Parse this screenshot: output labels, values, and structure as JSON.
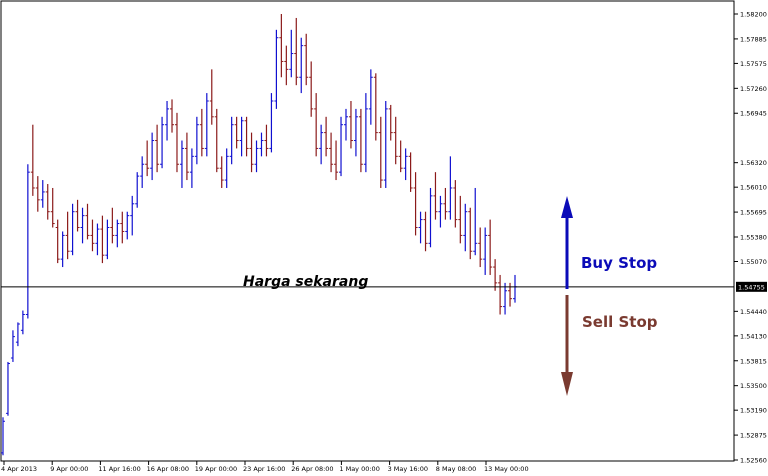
{
  "chart_data": {
    "type": "ohlc",
    "grid": false,
    "y_ticks": [
      "1.58200",
      "1.57885",
      "1.57575",
      "1.57260",
      "1.56945",
      "1.56320",
      "1.56010",
      "1.55695",
      "1.55380",
      "1.55070",
      "1.54440",
      "1.54130",
      "1.53815",
      "1.53500",
      "1.53190",
      "1.52875",
      "1.52560"
    ],
    "x_ticks": [
      "4 Apr 2013",
      "9 Apr 00:00",
      "11 Apr 16:00",
      "16 Apr 08:00",
      "19 Apr 00:00",
      "23 Apr 16:00",
      "26 Apr 08:00",
      "1 May 00:00",
      "3 May 16:00",
      "8 May 08:00",
      "13 May 00:00"
    ],
    "current_price_label": "1.54755",
    "current_price": 1.5475,
    "ylim": [
      1.5256,
      1.5826
    ],
    "bars": [
      {
        "o": 1.5265,
        "h": 1.531,
        "l": 1.5262,
        "c": 1.5305
      },
      {
        "o": 1.5315,
        "h": 1.538,
        "l": 1.5312,
        "c": 1.5378
      },
      {
        "o": 1.5385,
        "h": 1.542,
        "l": 1.538,
        "c": 1.5412
      },
      {
        "o": 1.5405,
        "h": 1.543,
        "l": 1.54,
        "c": 1.5428
      },
      {
        "o": 1.542,
        "h": 1.5445,
        "l": 1.5415,
        "c": 1.544
      },
      {
        "o": 1.544,
        "h": 1.563,
        "l": 1.5435,
        "c": 1.562
      },
      {
        "o": 1.562,
        "h": 1.568,
        "l": 1.559,
        "c": 1.56
      },
      {
        "o": 1.56,
        "h": 1.5615,
        "l": 1.557,
        "c": 1.5585
      },
      {
        "o": 1.5585,
        "h": 1.561,
        "l": 1.5575,
        "c": 1.5595
      },
      {
        "o": 1.5595,
        "h": 1.5605,
        "l": 1.556,
        "c": 1.557
      },
      {
        "o": 1.557,
        "h": 1.56,
        "l": 1.555,
        "c": 1.5555
      },
      {
        "o": 1.555,
        "h": 1.556,
        "l": 1.5505,
        "c": 1.551
      },
      {
        "o": 1.551,
        "h": 1.5545,
        "l": 1.55,
        "c": 1.554
      },
      {
        "o": 1.554,
        "h": 1.557,
        "l": 1.551,
        "c": 1.552
      },
      {
        "o": 1.552,
        "h": 1.558,
        "l": 1.5515,
        "c": 1.557
      },
      {
        "o": 1.557,
        "h": 1.5585,
        "l": 1.5545,
        "c": 1.555
      },
      {
        "o": 1.555,
        "h": 1.5575,
        "l": 1.553,
        "c": 1.5565
      },
      {
        "o": 1.5565,
        "h": 1.558,
        "l": 1.5535,
        "c": 1.554
      },
      {
        "o": 1.554,
        "h": 1.556,
        "l": 1.552,
        "c": 1.553
      },
      {
        "o": 1.553,
        "h": 1.5555,
        "l": 1.5515,
        "c": 1.5548
      },
      {
        "o": 1.5548,
        "h": 1.5565,
        "l": 1.5505,
        "c": 1.5515
      },
      {
        "o": 1.5515,
        "h": 1.556,
        "l": 1.551,
        "c": 1.555
      },
      {
        "o": 1.555,
        "h": 1.5575,
        "l": 1.553,
        "c": 1.554
      },
      {
        "o": 1.554,
        "h": 1.556,
        "l": 1.5525,
        "c": 1.5555
      },
      {
        "o": 1.5555,
        "h": 1.557,
        "l": 1.553,
        "c": 1.5545
      },
      {
        "o": 1.5545,
        "h": 1.557,
        "l": 1.5535,
        "c": 1.5565
      },
      {
        "o": 1.5565,
        "h": 1.559,
        "l": 1.554,
        "c": 1.558
      },
      {
        "o": 1.558,
        "h": 1.562,
        "l": 1.5575,
        "c": 1.5615
      },
      {
        "o": 1.5615,
        "h": 1.564,
        "l": 1.56,
        "c": 1.563
      },
      {
        "o": 1.563,
        "h": 1.566,
        "l": 1.5615,
        "c": 1.5625
      },
      {
        "o": 1.5625,
        "h": 1.567,
        "l": 1.561,
        "c": 1.566
      },
      {
        "o": 1.566,
        "h": 1.568,
        "l": 1.562,
        "c": 1.563
      },
      {
        "o": 1.563,
        "h": 1.569,
        "l": 1.5625,
        "c": 1.568
      },
      {
        "o": 1.568,
        "h": 1.571,
        "l": 1.566,
        "c": 1.57
      },
      {
        "o": 1.57,
        "h": 1.5712,
        "l": 1.567,
        "c": 1.568
      },
      {
        "o": 1.568,
        "h": 1.5695,
        "l": 1.562,
        "c": 1.563
      },
      {
        "o": 1.563,
        "h": 1.566,
        "l": 1.56,
        "c": 1.565
      },
      {
        "o": 1.565,
        "h": 1.567,
        "l": 1.561,
        "c": 1.562
      },
      {
        "o": 1.562,
        "h": 1.565,
        "l": 1.56,
        "c": 1.564
      },
      {
        "o": 1.564,
        "h": 1.569,
        "l": 1.563,
        "c": 1.568
      },
      {
        "o": 1.568,
        "h": 1.57,
        "l": 1.564,
        "c": 1.565
      },
      {
        "o": 1.565,
        "h": 1.572,
        "l": 1.564,
        "c": 1.571
      },
      {
        "o": 1.571,
        "h": 1.575,
        "l": 1.568,
        "c": 1.569
      },
      {
        "o": 1.569,
        "h": 1.57,
        "l": 1.562,
        "c": 1.5625
      },
      {
        "o": 1.5625,
        "h": 1.564,
        "l": 1.56,
        "c": 1.561
      },
      {
        "o": 1.561,
        "h": 1.565,
        "l": 1.56,
        "c": 1.564
      },
      {
        "o": 1.564,
        "h": 1.569,
        "l": 1.563,
        "c": 1.568
      },
      {
        "o": 1.568,
        "h": 1.569,
        "l": 1.565,
        "c": 1.566
      },
      {
        "o": 1.566,
        "h": 1.569,
        "l": 1.564,
        "c": 1.5685
      },
      {
        "o": 1.5685,
        "h": 1.569,
        "l": 1.564,
        "c": 1.565
      },
      {
        "o": 1.565,
        "h": 1.567,
        "l": 1.562,
        "c": 1.563
      },
      {
        "o": 1.563,
        "h": 1.566,
        "l": 1.562,
        "c": 1.565
      },
      {
        "o": 1.565,
        "h": 1.567,
        "l": 1.564,
        "c": 1.566
      },
      {
        "o": 1.566,
        "h": 1.568,
        "l": 1.564,
        "c": 1.565
      },
      {
        "o": 1.565,
        "h": 1.572,
        "l": 1.5645,
        "c": 1.571
      },
      {
        "o": 1.571,
        "h": 1.58,
        "l": 1.57,
        "c": 1.579
      },
      {
        "o": 1.579,
        "h": 1.582,
        "l": 1.574,
        "c": 1.576
      },
      {
        "o": 1.576,
        "h": 1.578,
        "l": 1.573,
        "c": 1.575
      },
      {
        "o": 1.575,
        "h": 1.58,
        "l": 1.574,
        "c": 1.577
      },
      {
        "o": 1.577,
        "h": 1.5815,
        "l": 1.573,
        "c": 1.574
      },
      {
        "o": 1.574,
        "h": 1.579,
        "l": 1.572,
        "c": 1.578
      },
      {
        "o": 1.578,
        "h": 1.5795,
        "l": 1.573,
        "c": 1.574
      },
      {
        "o": 1.574,
        "h": 1.576,
        "l": 1.569,
        "c": 1.57
      },
      {
        "o": 1.57,
        "h": 1.572,
        "l": 1.564,
        "c": 1.565
      },
      {
        "o": 1.565,
        "h": 1.568,
        "l": 1.563,
        "c": 1.567
      },
      {
        "o": 1.567,
        "h": 1.569,
        "l": 1.564,
        "c": 1.565
      },
      {
        "o": 1.565,
        "h": 1.567,
        "l": 1.562,
        "c": 1.563
      },
      {
        "o": 1.563,
        "h": 1.566,
        "l": 1.561,
        "c": 1.562
      },
      {
        "o": 1.562,
        "h": 1.569,
        "l": 1.5615,
        "c": 1.568
      },
      {
        "o": 1.568,
        "h": 1.57,
        "l": 1.566,
        "c": 1.569
      },
      {
        "o": 1.569,
        "h": 1.571,
        "l": 1.565,
        "c": 1.566
      },
      {
        "o": 1.566,
        "h": 1.57,
        "l": 1.564,
        "c": 1.569
      },
      {
        "o": 1.569,
        "h": 1.57,
        "l": 1.562,
        "c": 1.563
      },
      {
        "o": 1.563,
        "h": 1.572,
        "l": 1.562,
        "c": 1.57
      },
      {
        "o": 1.57,
        "h": 1.575,
        "l": 1.568,
        "c": 1.574
      },
      {
        "o": 1.574,
        "h": 1.5745,
        "l": 1.566,
        "c": 1.567
      },
      {
        "o": 1.567,
        "h": 1.569,
        "l": 1.56,
        "c": 1.561
      },
      {
        "o": 1.561,
        "h": 1.571,
        "l": 1.56,
        "c": 1.57
      },
      {
        "o": 1.57,
        "h": 1.5705,
        "l": 1.566,
        "c": 1.567
      },
      {
        "o": 1.567,
        "h": 1.569,
        "l": 1.563,
        "c": 1.564
      },
      {
        "o": 1.564,
        "h": 1.566,
        "l": 1.562,
        "c": 1.5625
      },
      {
        "o": 1.5625,
        "h": 1.565,
        "l": 1.561,
        "c": 1.564
      },
      {
        "o": 1.564,
        "h": 1.5645,
        "l": 1.5595,
        "c": 1.56
      },
      {
        "o": 1.56,
        "h": 1.562,
        "l": 1.554,
        "c": 1.555
      },
      {
        "o": 1.555,
        "h": 1.557,
        "l": 1.553,
        "c": 1.556
      },
      {
        "o": 1.556,
        "h": 1.557,
        "l": 1.552,
        "c": 1.553
      },
      {
        "o": 1.553,
        "h": 1.56,
        "l": 1.5525,
        "c": 1.559
      },
      {
        "o": 1.559,
        "h": 1.562,
        "l": 1.556,
        "c": 1.557
      },
      {
        "o": 1.557,
        "h": 1.559,
        "l": 1.555,
        "c": 1.558
      },
      {
        "o": 1.558,
        "h": 1.56,
        "l": 1.556,
        "c": 1.557
      },
      {
        "o": 1.557,
        "h": 1.564,
        "l": 1.556,
        "c": 1.56
      },
      {
        "o": 1.56,
        "h": 1.561,
        "l": 1.555,
        "c": 1.556
      },
      {
        "o": 1.556,
        "h": 1.559,
        "l": 1.553,
        "c": 1.554
      },
      {
        "o": 1.554,
        "h": 1.558,
        "l": 1.552,
        "c": 1.557
      },
      {
        "o": 1.557,
        "h": 1.5575,
        "l": 1.551,
        "c": 1.552
      },
      {
        "o": 1.552,
        "h": 1.56,
        "l": 1.5515,
        "c": 1.553
      },
      {
        "o": 1.553,
        "h": 1.555,
        "l": 1.55,
        "c": 1.551
      },
      {
        "o": 1.551,
        "h": 1.555,
        "l": 1.549,
        "c": 1.554
      },
      {
        "o": 1.554,
        "h": 1.556,
        "l": 1.549,
        "c": 1.55
      },
      {
        "o": 1.55,
        "h": 1.551,
        "l": 1.547,
        "c": 1.548
      },
      {
        "o": 1.548,
        "h": 1.549,
        "l": 1.544,
        "c": 1.545
      },
      {
        "o": 1.545,
        "h": 1.548,
        "l": 1.544,
        "c": 1.547
      },
      {
        "o": 1.547,
        "h": 1.548,
        "l": 1.545,
        "c": 1.546
      },
      {
        "o": 1.546,
        "h": 1.549,
        "l": 1.5455,
        "c": 1.5475
      }
    ],
    "annotations": {
      "current_price_text": "Harga sekarang",
      "buy_label": "Buy Stop",
      "sell_label": "Sell Stop"
    },
    "colors": {
      "bull": "#1010d0",
      "bear": "#8b1a1a",
      "buy": "#0b0bb8",
      "sell": "#7a3a30",
      "axis": "#000000",
      "price_label_bg": "#000000"
    }
  }
}
